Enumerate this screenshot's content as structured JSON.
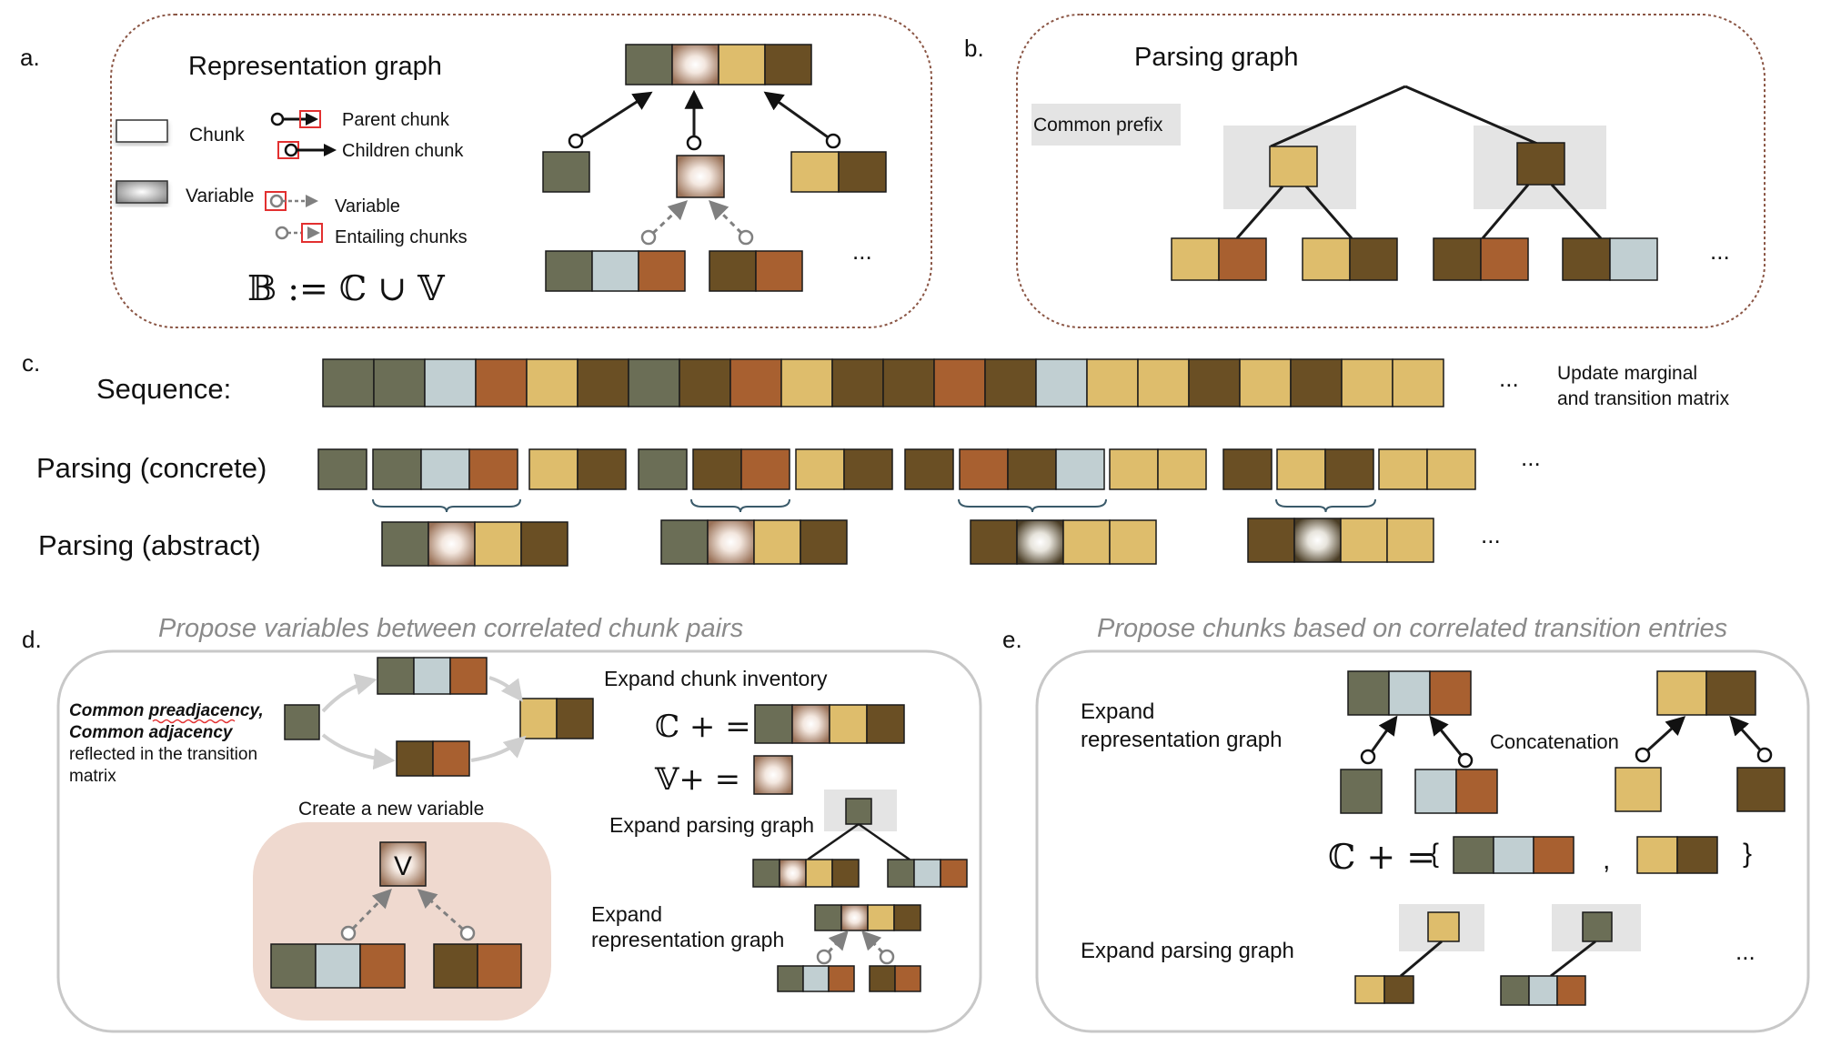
{
  "colors": {
    "olive": "#6b6e56",
    "light_blue": "#c1cfd2",
    "rust": "#a86030",
    "gold": "#debd6c",
    "brown": "#6a4f24",
    "variable_center": "#ffffff",
    "variable_edge": "#a07a60",
    "panel_dashed": "#8a5544",
    "panel_solid": "#c8c8c8",
    "gray_highlight": "#e4e4e4",
    "variable_bg": "#efd9cf",
    "underline_brace": "#3a5a6a",
    "red_outline": "#e23030"
  },
  "panel_a": {
    "label": "a.",
    "title": "Representation graph",
    "legend": {
      "chunk": "Chunk",
      "variable": "Variable",
      "parent_chunk": "Parent chunk",
      "children_chunk": "Children chunk",
      "variable_link": "Variable",
      "entailing_chunks": "Entailing chunks"
    },
    "formula": "𝔹 := ℂ ∪ 𝕍",
    "ellipsis": "..."
  },
  "panel_b": {
    "label": "b.",
    "title": "Parsing graph",
    "common_prefix": "Common prefix",
    "ellipsis": "..."
  },
  "panel_c": {
    "label": "c.",
    "sequence_label": "Sequence:",
    "sequence": [
      "olive",
      "olive",
      "light_blue",
      "rust",
      "gold",
      "brown",
      "olive",
      "brown",
      "rust",
      "gold",
      "brown",
      "brown",
      "rust",
      "brown",
      "light_blue",
      "gold",
      "gold",
      "brown",
      "gold",
      "brown",
      "gold",
      "gold"
    ],
    "update_note_line1": "Update marginal",
    "update_note_line2": "and transition matrix",
    "concrete_label": "Parsing (concrete)",
    "abstract_label": "Parsing (abstract)",
    "ellipsis": "..."
  },
  "panel_d": {
    "label": "d.",
    "title": "Propose variables between correlated chunk pairs",
    "note_bold_1": "Common preadjacency,",
    "note_bold_2": "Common adjacency",
    "note_line_3": "reflected in the transition",
    "note_line_4": "matrix",
    "create_variable": "Create a new variable",
    "variable_symbol": "V",
    "expand_inventory": "Expand chunk inventory",
    "c_plus_eq": "ℂ + =",
    "v_plus_eq": "𝕍+ =",
    "expand_parsing": "Expand parsing graph",
    "expand_rep_line1": "Expand",
    "expand_rep_line2": "representation graph"
  },
  "panel_e": {
    "label": "e.",
    "title": "Propose chunks based on correlated transition entries",
    "expand_rep_line1": "Expand",
    "expand_rep_line2": "representation graph",
    "concatenation": "Concatenation",
    "c_plus_eq": "ℂ + =",
    "open_brace": "{",
    "comma": ",",
    "close_brace": "}",
    "expand_parsing": "Expand parsing graph",
    "ellipsis": "..."
  }
}
